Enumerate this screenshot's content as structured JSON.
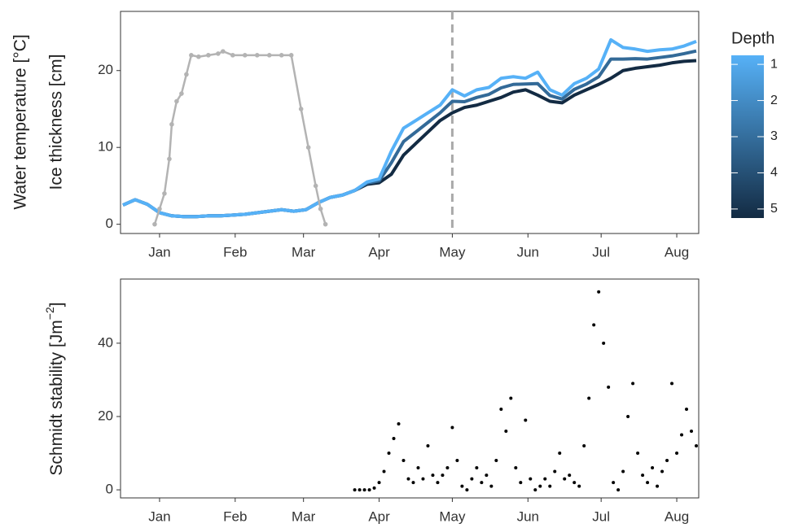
{
  "chart_data": [
    {
      "type": "line",
      "ylabel": [
        "Water temperature [°C]",
        "Ice thickness [cm]"
      ],
      "xlim": [
        -16,
        221
      ],
      "ylim": [
        -1.2,
        27.7
      ],
      "xticks": [
        {
          "value": 0,
          "label": "Jan"
        },
        {
          "value": 31,
          "label": "Feb"
        },
        {
          "value": 59,
          "label": "Mar"
        },
        {
          "value": 90,
          "label": "Apr"
        },
        {
          "value": 120,
          "label": "May"
        },
        {
          "value": 151,
          "label": "Jun"
        },
        {
          "value": 181,
          "label": "Jul"
        },
        {
          "value": 212,
          "label": "Aug"
        }
      ],
      "yticks": [
        0,
        10,
        20
      ],
      "grid": false,
      "vline": 120,
      "x": [
        -15,
        -10,
        -5,
        0,
        5,
        10,
        15,
        20,
        25,
        30,
        35,
        40,
        45,
        50,
        55,
        60,
        65,
        70,
        75,
        80,
        85,
        90,
        95,
        100,
        105,
        110,
        115,
        120,
        125,
        130,
        135,
        140,
        145,
        150,
        155,
        160,
        165,
        170,
        175,
        180,
        185,
        190,
        195,
        200,
        205,
        210,
        215,
        220
      ],
      "series": [
        {
          "color": "#132B43",
          "values": [
            2.5,
            3.2,
            2.6,
            1.5,
            1.1,
            1.0,
            1.0,
            1.1,
            1.1,
            1.2,
            1.3,
            1.5,
            1.7,
            1.9,
            1.7,
            1.9,
            2.8,
            3.5,
            3.8,
            4.4,
            5.2,
            5.4,
            6.5,
            9.0,
            10.5,
            12.0,
            13.5,
            14.5,
            15.2,
            15.5,
            16.0,
            16.5,
            17.2,
            17.5,
            16.8,
            16.0,
            15.8,
            16.8,
            17.5,
            18.2,
            19.0,
            20.0,
            20.3,
            20.5,
            20.7,
            21.0,
            21.2,
            21.3
          ]
        },
        {
          "color": "#336A98",
          "values": [
            2.5,
            3.2,
            2.6,
            1.5,
            1.1,
            1.0,
            1.0,
            1.1,
            1.1,
            1.2,
            1.3,
            1.5,
            1.7,
            1.9,
            1.7,
            1.9,
            2.8,
            3.5,
            3.8,
            4.4,
            5.35,
            5.65,
            8.0,
            10.75,
            12.0,
            13.25,
            14.5,
            16.0,
            15.95,
            16.5,
            16.9,
            17.75,
            18.2,
            18.25,
            18.3,
            16.75,
            16.3,
            17.55,
            18.25,
            19.2,
            21.5,
            21.5,
            21.55,
            21.5,
            21.7,
            21.9,
            22.2,
            22.55
          ]
        },
        {
          "color": "#56B1F7",
          "values": [
            2.5,
            3.2,
            2.6,
            1.5,
            1.1,
            1.0,
            1.0,
            1.1,
            1.1,
            1.2,
            1.3,
            1.5,
            1.7,
            1.9,
            1.7,
            1.9,
            2.8,
            3.5,
            3.8,
            4.4,
            5.5,
            5.9,
            9.5,
            12.5,
            13.5,
            14.5,
            15.5,
            17.5,
            16.7,
            17.5,
            17.8,
            19.0,
            19.2,
            19.0,
            19.8,
            17.5,
            16.8,
            18.3,
            19.0,
            20.2,
            24.0,
            23.0,
            22.8,
            22.5,
            22.7,
            22.8,
            23.2,
            23.8
          ]
        },
        {
          "color": "#b3b3b3",
          "points": true,
          "x": [
            -2,
            0,
            2,
            4,
            5,
            7,
            9,
            11,
            13,
            16,
            20,
            24,
            26,
            30,
            35,
            40,
            45,
            50,
            54,
            58,
            61,
            64,
            66,
            68
          ],
          "values": [
            0,
            2,
            4,
            8.5,
            13,
            16,
            17,
            19.5,
            22,
            21.8,
            22,
            22.2,
            22.5,
            22,
            22,
            22,
            22,
            22,
            22,
            15,
            10,
            5,
            2,
            0
          ]
        }
      ],
      "colorbar": {
        "title": "Depth",
        "lim": [
          0.75,
          5.25
        ],
        "ticks": [
          1,
          2,
          3,
          4,
          5
        ],
        "colors": [
          "#56B1F7",
          "#132B43"
        ]
      }
    },
    {
      "type": "scatter",
      "ylabel": [
        "Schmidt stability [Jm",
        "−2",
        "]"
      ],
      "xlim": [
        -16,
        221
      ],
      "ylim": [
        -2.2,
        57.5
      ],
      "xticks": [
        {
          "value": 0,
          "label": "Jan"
        },
        {
          "value": 31,
          "label": "Feb"
        },
        {
          "value": 59,
          "label": "Mar"
        },
        {
          "value": 90,
          "label": "Apr"
        },
        {
          "value": 120,
          "label": "May"
        },
        {
          "value": 151,
          "label": "Jun"
        },
        {
          "value": 181,
          "label": "Jul"
        },
        {
          "value": 212,
          "label": "Aug"
        }
      ],
      "yticks": [
        0,
        20,
        40
      ],
      "grid": false,
      "color": "#000000",
      "x": [
        80,
        82,
        84,
        86,
        88,
        90,
        92,
        94,
        96,
        98,
        100,
        102,
        104,
        106,
        108,
        110,
        112,
        114,
        116,
        118,
        120,
        122,
        124,
        126,
        128,
        130,
        132,
        134,
        136,
        138,
        140,
        142,
        144,
        146,
        148,
        150,
        152,
        154,
        156,
        158,
        160,
        162,
        164,
        166,
        168,
        170,
        172,
        174,
        176,
        178,
        180,
        182,
        184,
        186,
        188,
        190,
        192,
        194,
        196,
        198,
        200,
        202,
        204,
        206,
        208,
        210,
        212,
        214,
        216,
        218,
        220
      ],
      "values": [
        0,
        0,
        0,
        0,
        0.5,
        2,
        5,
        10,
        14,
        18,
        8,
        3,
        2,
        6,
        3,
        12,
        4,
        2,
        4,
        6,
        17,
        8,
        1,
        0,
        3,
        6,
        2,
        4,
        1,
        8,
        22,
        16,
        25,
        6,
        2,
        19,
        3,
        0,
        1,
        3,
        1,
        5,
        10,
        3,
        4,
        2,
        1,
        12,
        25,
        45,
        54,
        40,
        28,
        2,
        0,
        5,
        20,
        29,
        10,
        4,
        2,
        6,
        1,
        5,
        8,
        29,
        10,
        15,
        22,
        16,
        12
      ]
    }
  ]
}
